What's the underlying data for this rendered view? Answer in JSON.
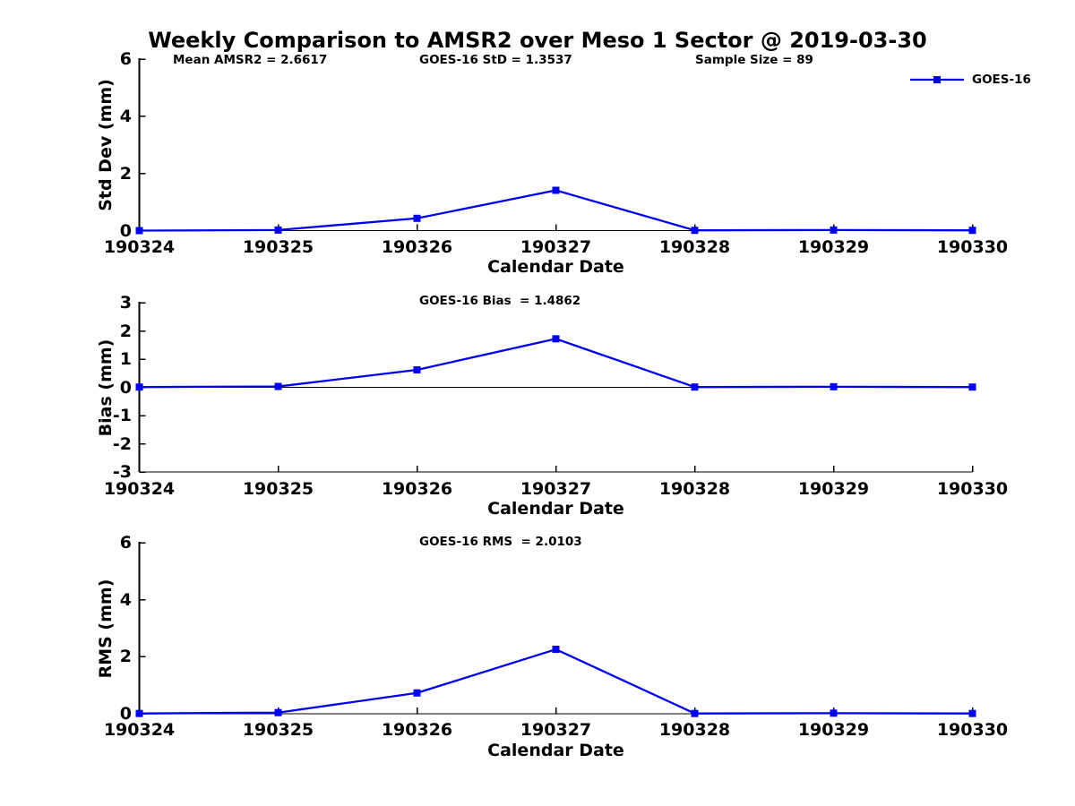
{
  "title": "Weekly Comparison to AMSR2 over Meso 1 Sector @ 2019-03-30",
  "legend": {
    "label": "GOES-16",
    "position": "top-right"
  },
  "colors": {
    "line": "#0000EE",
    "axis": "#000000",
    "text": "#000000",
    "background": "#FFFFFF"
  },
  "stats": {
    "mean_amsr2": 2.6617,
    "goes16_std": 1.3537,
    "sample_size": 89,
    "goes16_bias": 1.4862,
    "goes16_rms": 2.0103
  },
  "chart_data": [
    {
      "type": "line",
      "name": "std-dev-panel",
      "annotations": [
        "Mean AMSR2 = 2.6617",
        "GOES-16 StD = 1.3537",
        "Sample Size = 89"
      ],
      "xlabel": "Calendar Date",
      "ylabel": "Std Dev (mm)",
      "categories": [
        "190324",
        "190325",
        "190326",
        "190327",
        "190328",
        "190329",
        "190330"
      ],
      "series": [
        {
          "name": "GOES-16",
          "values": [
            0.0,
            0.02,
            0.43,
            1.41,
            0.01,
            0.02,
            0.01
          ]
        }
      ],
      "ylim": [
        0,
        6
      ],
      "yticks": [
        0,
        2,
        4,
        6
      ],
      "grid": false,
      "zero_line": false,
      "marker": "square"
    },
    {
      "type": "line",
      "name": "bias-panel",
      "annotations": [
        "GOES-16 Bias  = 1.4862"
      ],
      "xlabel": "Calendar Date",
      "ylabel": "Bias (mm)",
      "categories": [
        "190324",
        "190325",
        "190326",
        "190327",
        "190328",
        "190329",
        "190330"
      ],
      "series": [
        {
          "name": "GOES-16",
          "values": [
            0.01,
            0.03,
            0.62,
            1.72,
            0.01,
            0.02,
            0.01
          ]
        }
      ],
      "ylim": [
        -3,
        3
      ],
      "yticks": [
        -3,
        -2,
        -1,
        0,
        1,
        2,
        3
      ],
      "grid": false,
      "zero_line": true,
      "marker": "square"
    },
    {
      "type": "line",
      "name": "rms-panel",
      "annotations": [
        "GOES-16 RMS  = 2.0103"
      ],
      "xlabel": "Calendar Date",
      "ylabel": "RMS (mm)",
      "categories": [
        "190324",
        "190325",
        "190326",
        "190327",
        "190328",
        "190329",
        "190330"
      ],
      "series": [
        {
          "name": "GOES-16",
          "values": [
            0.01,
            0.04,
            0.73,
            2.26,
            0.01,
            0.02,
            0.01
          ]
        }
      ],
      "ylim": [
        0,
        6
      ],
      "yticks": [
        0,
        2,
        4,
        6
      ],
      "grid": false,
      "zero_line": false,
      "marker": "square"
    }
  ]
}
